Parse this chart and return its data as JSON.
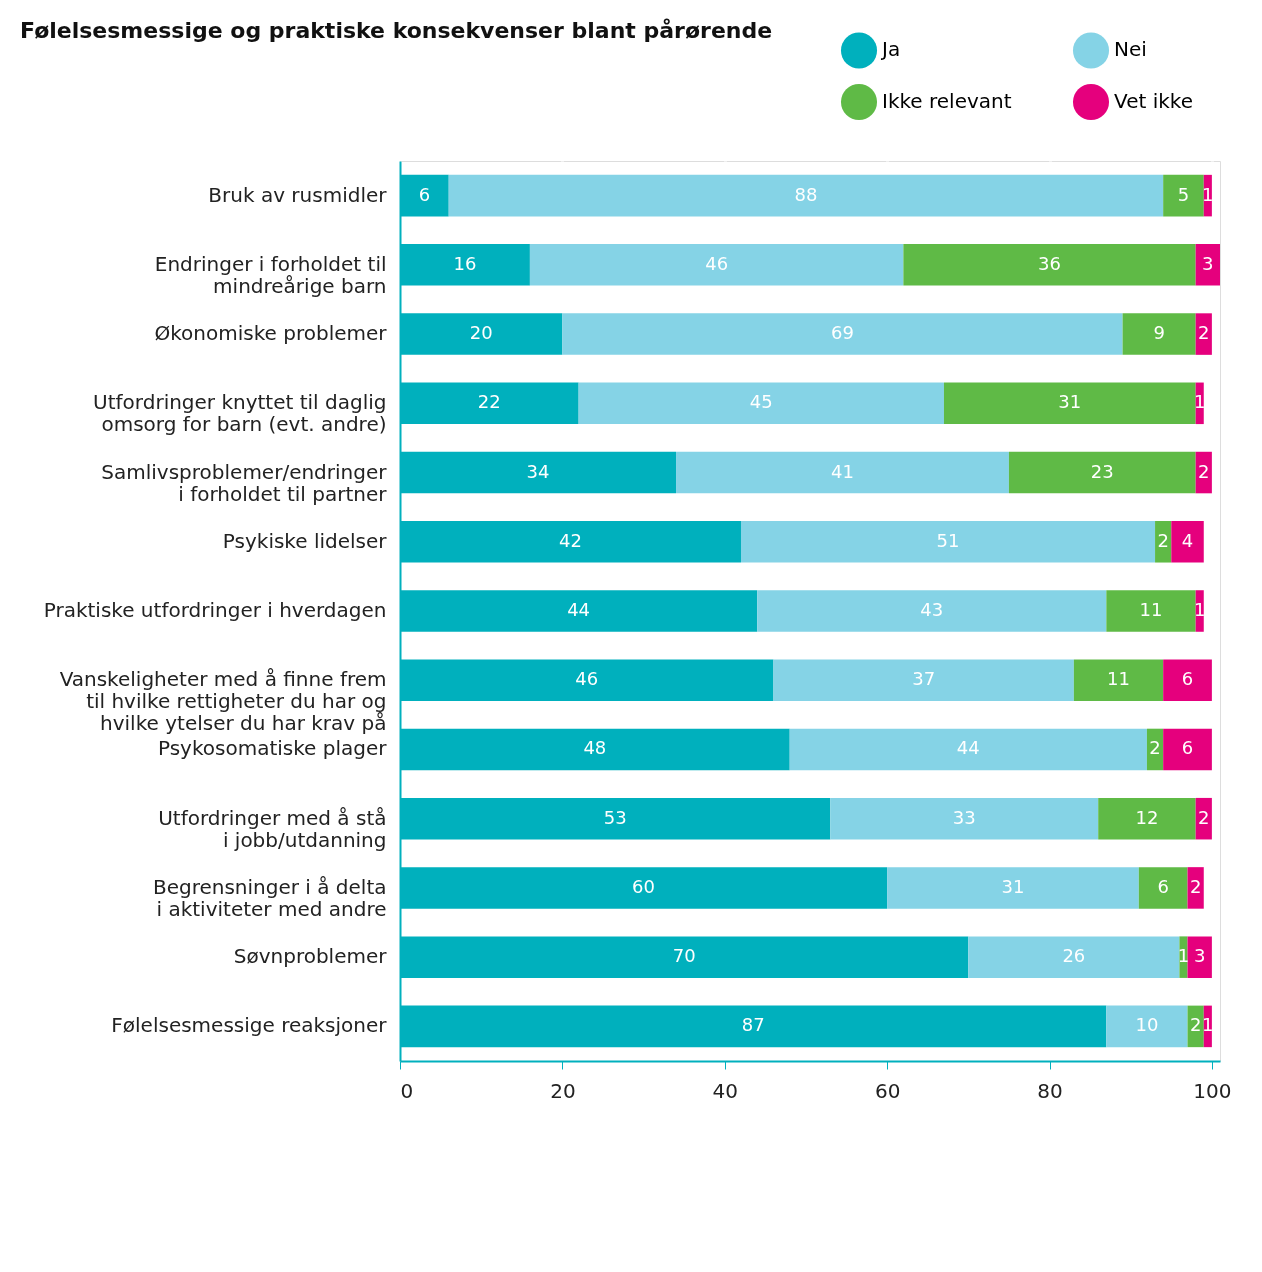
{
  "chart_data": {
    "type": "bar",
    "orientation": "horizontal",
    "stacked": true,
    "title": "Følelsesmessige og praktiske konsekvenser blant pårørende",
    "categories": [
      "Bruk av rusmidler",
      "Endringer i forholdet til\nmindreårige barn",
      "Økonomiske problemer",
      "Utfordringer knyttet til daglig\nomsorg for barn (evt. andre)",
      "Samlivsproblemer/endringer\ni forholdet til partner",
      "Psykiske lidelser",
      "Praktiske utfordringer i hverdagen",
      "Vanskeligheter med å finne frem\ntil hvilke rettigheter du har og\nhvilke ytelser du har krav på",
      "Psykosomatiske plager",
      "Utfordringer med å stå\ni jobb/utdanning",
      "Begrensninger i å delta\ni aktiviteter med andre",
      "Søvnproblemer",
      "Følelsesmessige reaksjoner"
    ],
    "series": [
      {
        "name": "Ja",
        "color": "#00b0bd",
        "values": [
          6,
          16,
          20,
          22,
          34,
          42,
          44,
          46,
          48,
          53,
          60,
          70,
          87
        ]
      },
      {
        "name": "Nei",
        "color": "#85d3e6",
        "values": [
          88,
          46,
          69,
          45,
          41,
          51,
          43,
          37,
          44,
          33,
          31,
          26,
          10
        ]
      },
      {
        "name": "Ikke relevant",
        "color": "#5fba46",
        "values": [
          5,
          36,
          9,
          31,
          23,
          2,
          11,
          11,
          2,
          12,
          6,
          1,
          2
        ]
      },
      {
        "name": "Vet ikke",
        "color": "#e5007d",
        "values": [
          1,
          3,
          2,
          1,
          2,
          4,
          1,
          6,
          6,
          2,
          2,
          3,
          1
        ]
      }
    ],
    "xlim": [
      0,
      101
    ],
    "xticks": [
      0,
      20,
      40,
      60,
      80,
      100
    ],
    "grid": "x",
    "legend": "top right",
    "data_labels": true
  }
}
